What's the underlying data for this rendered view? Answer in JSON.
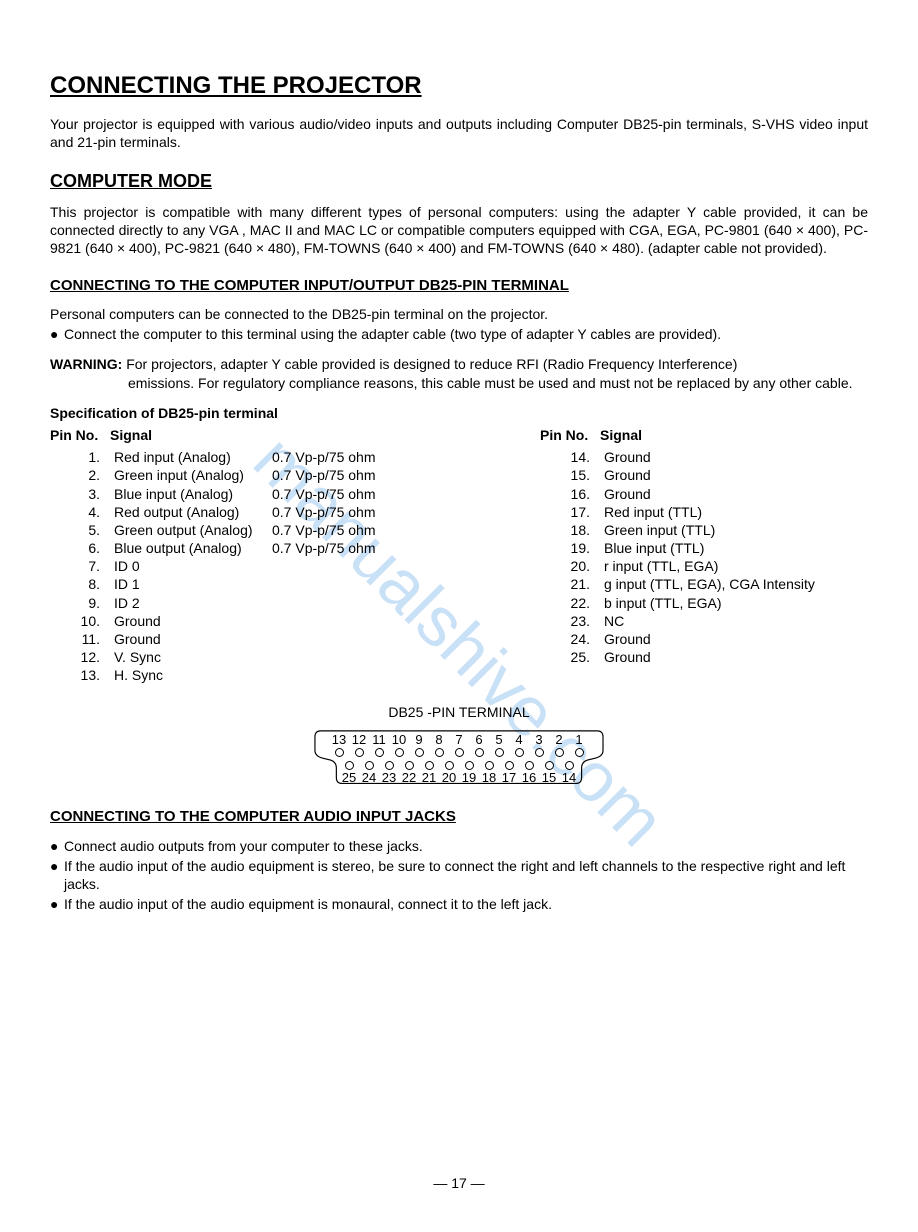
{
  "watermark": "manualshive.com",
  "h1": "CONNECTING THE PROJECTOR",
  "intro": "Your projector is equipped with various audio/video inputs and outputs including Computer DB25-pin terminals, S-VHS video input and 21-pin terminals.",
  "h2_mode": "COMPUTER MODE",
  "mode_para": "This projector is compatible with many different types of personal computers: using the adapter Y cable provided, it can be connected directly to any VGA , MAC II and MAC LC or compatible computers equipped with CGA, EGA, PC-9801 (640 × 400),  PC-9821 (640 × 400),  PC-9821 (640 × 480), FM-TOWNS (640 × 400) and FM-TOWNS (640 × 480). (adapter cable not provided).",
  "h3_db25": "CONNECTING TO THE COMPUTER INPUT/OUTPUT DB25-PIN TERMINAL",
  "db25_line1": "Personal computers can be connected to the DB25-pin terminal on the projector.",
  "db25_bullet": "Connect the computer to this terminal using the adapter cable (two type of adapter Y cables are provided).",
  "warning_label": "WARNING:",
  "warning_body": "For projectors, adapter Y cable provided is designed to reduce RFI (Radio Frequency Interference) emissions. For regulatory compliance reasons, this cable must be used and must not be replaced by any other cable.",
  "spec_title": "Specification of DB25-pin terminal",
  "col_pin": "Pin No.",
  "col_sig": "Signal",
  "pins_left": [
    {
      "n": "1.",
      "sig": "Red input (Analog)",
      "val": "0.7 Vp-p/75 ohm"
    },
    {
      "n": "2.",
      "sig": "Green input (Analog)",
      "val": "0.7 Vp-p/75 ohm"
    },
    {
      "n": "3.",
      "sig": "Blue input (Analog)",
      "val": "0.7 Vp-p/75 ohm"
    },
    {
      "n": "4.",
      "sig": "Red output (Analog)",
      "val": "0.7 Vp-p/75 ohm"
    },
    {
      "n": "5.",
      "sig": "Green output (Analog)",
      "val": "0.7 Vp-p/75 ohm"
    },
    {
      "n": "6.",
      "sig": "Blue output (Analog)",
      "val": "0.7 Vp-p/75 ohm"
    },
    {
      "n": "7.",
      "sig": "ID 0",
      "val": ""
    },
    {
      "n": "8.",
      "sig": "ID 1",
      "val": ""
    },
    {
      "n": "9.",
      "sig": "ID 2",
      "val": ""
    },
    {
      "n": "10.",
      "sig": "Ground",
      "val": ""
    },
    {
      "n": "11.",
      "sig": "Ground",
      "val": ""
    },
    {
      "n": "12.",
      "sig": "V. Sync",
      "val": ""
    },
    {
      "n": "13.",
      "sig": "H. Sync",
      "val": ""
    }
  ],
  "pins_right": [
    {
      "n": "14.",
      "sig": "Ground"
    },
    {
      "n": "15.",
      "sig": "Ground"
    },
    {
      "n": "16.",
      "sig": "Ground"
    },
    {
      "n": "17.",
      "sig": "Red input (TTL)"
    },
    {
      "n": "18.",
      "sig": "Green input (TTL)"
    },
    {
      "n": "19.",
      "sig": "Blue input (TTL)"
    },
    {
      "n": "20.",
      "sig": "r input (TTL, EGA)"
    },
    {
      "n": "21.",
      "sig": "g input (TTL, EGA), CGA Intensity"
    },
    {
      "n": "22.",
      "sig": "b input (TTL, EGA)"
    },
    {
      "n": "23.",
      "sig": "NC"
    },
    {
      "n": "24.",
      "sig": "Ground"
    },
    {
      "n": "25.",
      "sig": "Ground"
    }
  ],
  "term_label": "DB25 -PIN TERMINAL",
  "conn_top": [
    "13",
    "12",
    "11",
    "10",
    "9",
    "8",
    "7",
    "6",
    "5",
    "4",
    "3",
    "2",
    "1"
  ],
  "conn_bot": [
    "25",
    "24",
    "23",
    "22",
    "21",
    "20",
    "19",
    "18",
    "17",
    "16",
    "15",
    "14"
  ],
  "h3_audio": "CONNECTING TO THE COMPUTER AUDIO INPUT JACKS",
  "audio_b1": "Connect audio outputs from your computer to these jacks.",
  "audio_b2": "If the audio input of the audio equipment is stereo, be sure to connect the right and left channels to the respective right and left jacks.",
  "audio_b3": "If the audio input of the audio equipment is monaural, connect it to the left jack.",
  "page_no": "— 17 —"
}
